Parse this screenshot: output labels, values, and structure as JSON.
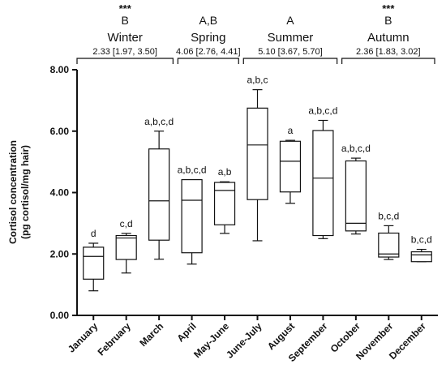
{
  "chart_data": {
    "type": "boxplot",
    "ylabel_line1": "Cortisol concentration",
    "ylabel_line2": "(pg cortisol/mg hair)",
    "ylim": [
      0,
      8
    ],
    "y_ticks": [
      "0.00",
      "2.00",
      "4.00",
      "6.00",
      "8.00"
    ],
    "categories": [
      "January",
      "February",
      "March",
      "April",
      "May-June",
      "June-July",
      "August",
      "September",
      "October",
      "November",
      "December"
    ],
    "boxes": [
      {
        "min": 0.8,
        "q1": 1.18,
        "median": 1.92,
        "q3": 2.22,
        "max": 2.35,
        "label": "d"
      },
      {
        "min": 1.38,
        "q1": 1.82,
        "median": 2.52,
        "q3": 2.6,
        "max": 2.67,
        "label": "c,d"
      },
      {
        "min": 1.83,
        "q1": 2.45,
        "median": 3.73,
        "q3": 5.42,
        "max": 6.0,
        "label": "a,b,c,d"
      },
      {
        "min": 1.67,
        "q1": 2.04,
        "median": 3.75,
        "q3": 4.42,
        "max": 4.42,
        "label": "a,b,c,d"
      },
      {
        "min": 2.67,
        "q1": 2.95,
        "median": 4.07,
        "q3": 4.33,
        "max": 4.35,
        "label": "a,b"
      },
      {
        "min": 2.43,
        "q1": 3.77,
        "median": 5.55,
        "q3": 6.75,
        "max": 7.35,
        "label": "a,b,c"
      },
      {
        "min": 3.65,
        "q1": 4.02,
        "median": 5.02,
        "q3": 5.67,
        "max": 5.7,
        "label": "a"
      },
      {
        "min": 2.5,
        "q1": 2.6,
        "median": 4.47,
        "q3": 6.02,
        "max": 6.35,
        "label": "a,b,c,d"
      },
      {
        "min": 2.65,
        "q1": 2.75,
        "median": 3.0,
        "q3": 5.03,
        "max": 5.12,
        "label": "a,b,c,d"
      },
      {
        "min": 1.82,
        "q1": 1.9,
        "median": 2.0,
        "q3": 2.68,
        "max": 2.92,
        "label": "b,c,d"
      },
      {
        "min": 1.75,
        "q1": 1.75,
        "median": 1.97,
        "q3": 2.07,
        "max": 2.15,
        "label": "b,c,d"
      }
    ],
    "seasons": [
      {
        "name": "Winter",
        "letter": "B",
        "stars": "***",
        "stat": "2.33 [1.97, 3.50]",
        "from": 0,
        "to": 2
      },
      {
        "name": "Spring",
        "letter": "A,B",
        "stars": "",
        "stat": "4.06 [2.76, 4.41]",
        "from": 3,
        "to": 4
      },
      {
        "name": "Summer",
        "letter": "A",
        "stars": "",
        "stat": "5.10 [3.67, 5.70]",
        "from": 5,
        "to": 7
      },
      {
        "name": "Autumn",
        "letter": "B",
        "stars": "***",
        "stat": "2.36 [1.83, 3.02]",
        "from": 8,
        "to": 10
      }
    ]
  }
}
